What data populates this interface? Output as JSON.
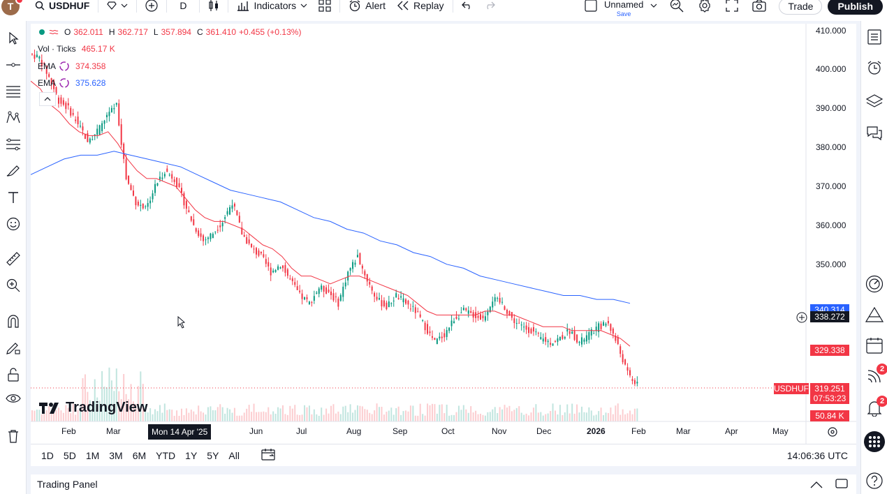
{
  "topbar": {
    "avatar_letter": "T",
    "symbol": "USDHUF",
    "interval": "D",
    "indicators_label": "Indicators",
    "alert_label": "Alert",
    "replay_label": "Replay",
    "layout_name": "Unnamed",
    "layout_save": "Save",
    "trade_label": "Trade",
    "publish_label": "Publish"
  },
  "legend": {
    "ohlc": {
      "o_label": "O",
      "o": "362.011",
      "h_label": "H",
      "h": "362.717",
      "l_label": "L",
      "l": "357.894",
      "c_label": "C",
      "c": "361.410",
      "change": "+0.455 (+0.13%)"
    },
    "volume": {
      "label": "Vol · Ticks",
      "value": "465.17 K"
    },
    "ema1": {
      "label": "EMA",
      "value": "374.358",
      "color": "#f23645"
    },
    "ema2": {
      "label": "EMA",
      "value": "375.628",
      "color": "#2962ff"
    }
  },
  "price_axis": {
    "ticks": [
      "410.000",
      "400.000",
      "390.000",
      "380.000",
      "370.000",
      "360.000",
      "350.000",
      "329.338"
    ],
    "crosshair_price": "338.272",
    "blue_tag": "340.314",
    "symbol_tag": "USDHUF",
    "last_price": "319.251",
    "countdown": "07:53:23",
    "volume_tag": "50.84 K"
  },
  "time_axis": {
    "labels": [
      "Feb",
      "Mar",
      "Jun",
      "Jul",
      "Aug",
      "Sep",
      "Oct",
      "Nov",
      "Dec",
      "2026",
      "Feb",
      "Mar",
      "Apr",
      "May"
    ],
    "crosshair_date": "Mon 14 Apr '25"
  },
  "watermark": "TradingView",
  "range_buttons": [
    "1D",
    "5D",
    "1M",
    "3M",
    "6M",
    "YTD",
    "1Y",
    "5Y",
    "All"
  ],
  "clock": "14:06:36 UTC",
  "trading_panel": "Trading Panel",
  "badges": {
    "notifications": "2",
    "alerts": "2"
  },
  "colors": {
    "up": "#089981",
    "down": "#f23645",
    "ema_fast": "#f23645",
    "ema_slow": "#2962ff"
  },
  "chart_data": {
    "type": "candlestick",
    "series": [
      {
        "name": "USDHUF",
        "close": [
          403,
          398,
          392,
          390,
          386,
          382,
          384,
          388,
          391,
          372,
          366,
          364,
          370,
          374,
          372,
          366,
          360,
          356,
          358,
          361,
          366,
          358,
          354,
          352,
          348,
          350,
          346,
          342,
          340,
          344,
          343,
          340,
          348,
          352,
          346,
          341,
          339,
          342,
          340,
          338,
          334,
          330,
          332,
          336,
          338,
          337,
          336,
          341,
          340,
          336,
          334,
          333,
          331,
          330,
          331,
          333,
          330,
          332,
          334,
          335,
          329,
          322,
          319
        ]
      }
    ],
    "ema_fast_values": [
      397,
      395,
      391,
      389,
      386,
      384,
      383,
      383,
      384,
      381,
      377,
      374,
      372,
      372,
      371,
      370,
      367,
      364,
      362,
      361,
      361,
      360,
      359,
      357,
      355,
      354,
      352,
      349,
      347,
      347,
      346,
      345,
      346,
      347,
      347,
      346,
      345,
      344,
      343,
      342,
      340,
      338,
      337,
      337,
      337,
      337,
      337,
      338,
      338,
      337,
      337,
      336,
      335,
      334,
      334,
      334,
      333,
      333,
      333,
      333,
      332,
      331,
      329
    ],
    "ema_slow_values": [
      373,
      375,
      377,
      378,
      378,
      379,
      378,
      377,
      376,
      375,
      373,
      371,
      369,
      368,
      367,
      366,
      364,
      362,
      361,
      359,
      358,
      356,
      355,
      353,
      352,
      350,
      349,
      347,
      346,
      345,
      344,
      343,
      342,
      342,
      341,
      341,
      340
    ],
    "y_range": [
      314,
      416
    ]
  }
}
